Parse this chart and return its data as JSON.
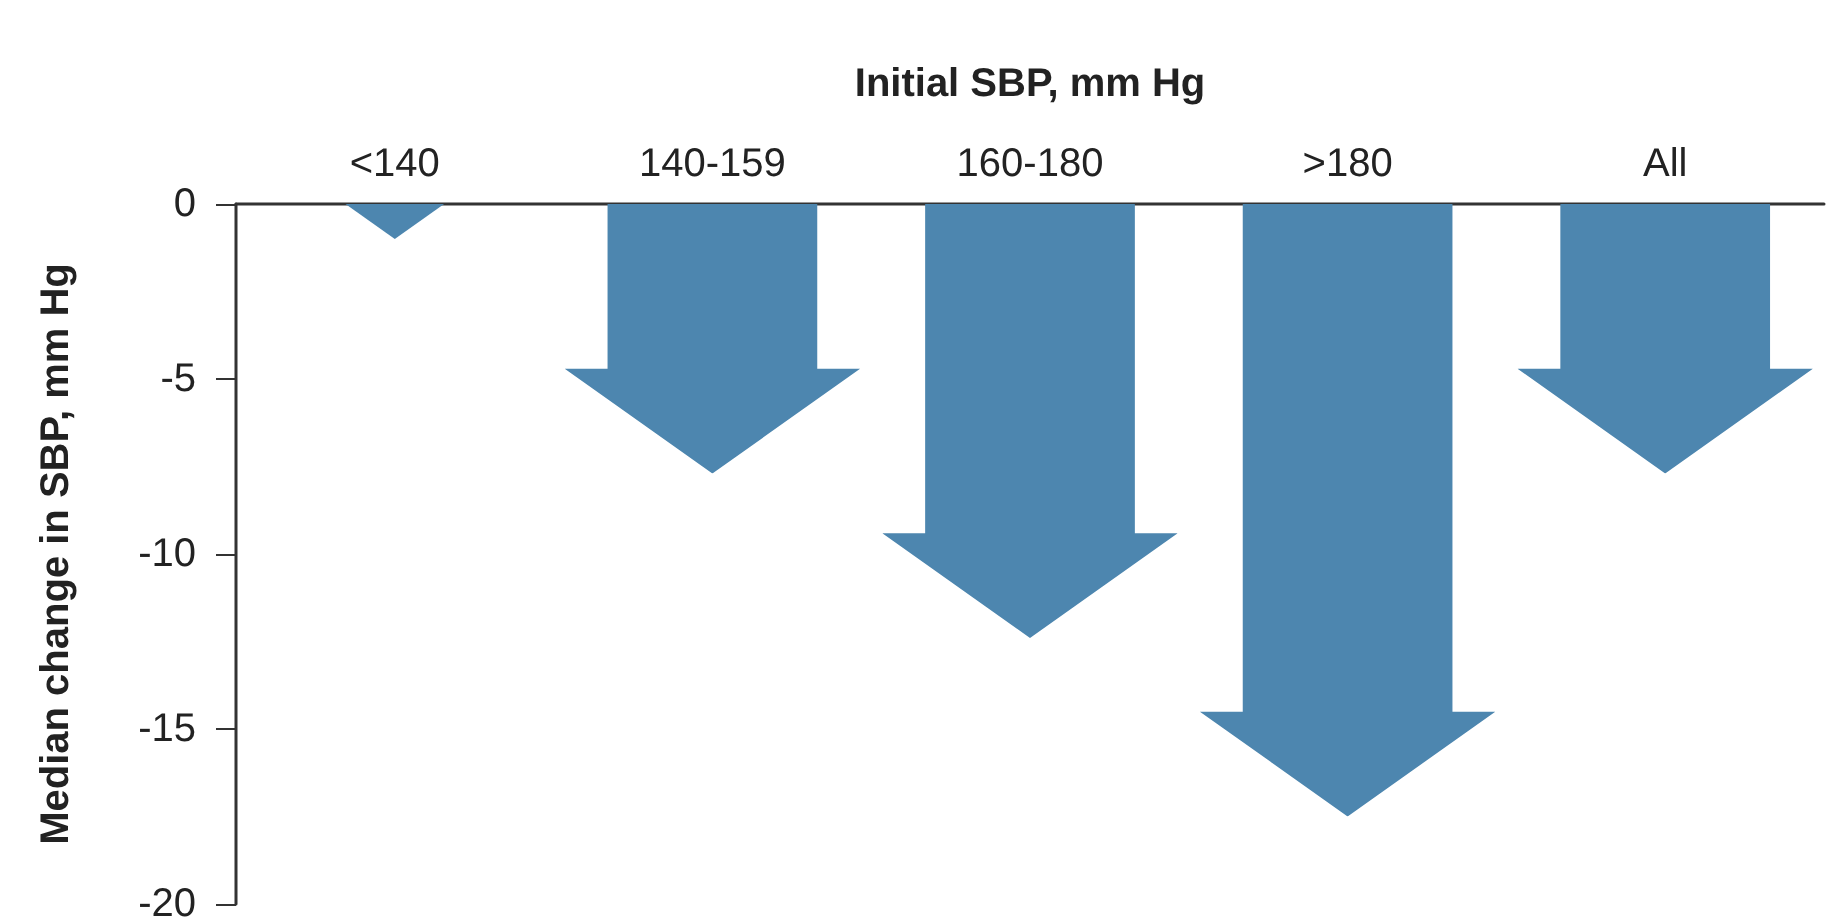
{
  "chart_data": {
    "type": "bar",
    "xlabel": "Initial SBP, mm Hg",
    "ylabel": "Median change in SBP, mm Hg",
    "categories": [
      "<140",
      "140-159",
      "160-180",
      ">180",
      "All"
    ],
    "values": [
      -1.0,
      -7.7,
      -12.4,
      -17.5,
      -7.7
    ],
    "color": "#4d86af",
    "ylim": [
      -20,
      0
    ],
    "yticks": [
      -20,
      -15,
      -10,
      -5,
      0
    ],
    "grid": false
  }
}
